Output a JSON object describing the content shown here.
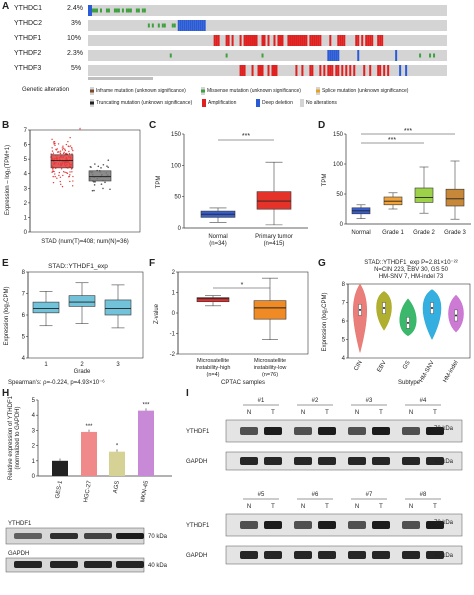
{
  "panels": [
    "A",
    "B",
    "C",
    "D",
    "E",
    "F",
    "G",
    "H",
    "I"
  ],
  "oncoprint": {
    "genes": [
      "YTHDC1",
      "YTHDC2",
      "YTHDF1",
      "YTHDF2",
      "YTHDF3"
    ],
    "pcts": [
      "2.4%",
      "3%",
      "10%",
      "2.3%",
      "5%"
    ],
    "legend_title": "Genetic alteration",
    "legend": [
      "Inframe mutation (unknown significance)",
      "Missense mutation (unknown significance)",
      "Splice mutation (unknown significance)",
      "Truncating mutation (unknown significance)",
      "Amplification",
      "Deep deletion",
      "No alterations"
    ]
  },
  "chart_data": [
    {
      "panel": "B",
      "type": "box",
      "ylabel": "Expression – log₂(TPM+1)",
      "yticks": [
        "0",
        "1",
        "2",
        "3",
        "4",
        "5",
        "6",
        "7"
      ],
      "ylim": [
        0,
        7
      ],
      "categories": [
        "T",
        "N"
      ],
      "medians": [
        4.9,
        3.8
      ],
      "q1": [
        4.4,
        3.5
      ],
      "q3": [
        5.3,
        4.2
      ],
      "colors": [
        "#e23b3b",
        "#777777"
      ],
      "xlabel": "STAD (num(T)=408; num(N)=36)"
    },
    {
      "panel": "C",
      "type": "box",
      "ylabel": "TPM",
      "yticks": [
        "0",
        "50",
        "100",
        "150"
      ],
      "ylim": [
        0,
        150
      ],
      "categories": [
        "Normal\n(n=34)",
        "Primary tumor\n(n=415)"
      ],
      "medians": [
        22,
        43
      ],
      "q1": [
        17,
        30
      ],
      "q3": [
        27,
        58
      ],
      "whislo": [
        9,
        5
      ],
      "whishi": [
        32,
        105
      ],
      "colors": [
        "#3a5fcd",
        "#e5332a"
      ],
      "sig": "***"
    },
    {
      "panel": "D",
      "type": "box",
      "ylabel": "TPM",
      "yticks": [
        "0",
        "50",
        "100",
        "150"
      ],
      "ylim": [
        0,
        150
      ],
      "categories": [
        "Normal",
        "Grade 1",
        "Grade 2",
        "Grade 3"
      ],
      "medians": [
        22,
        38,
        44,
        42
      ],
      "q1": [
        17,
        32,
        36,
        30
      ],
      "q3": [
        27,
        45,
        60,
        58
      ],
      "whislo": [
        9,
        25,
        18,
        8
      ],
      "whishi": [
        32,
        52,
        95,
        105
      ],
      "colors": [
        "#3a5fcd",
        "#f2a33a",
        "#9dd14a",
        "#c8883a"
      ],
      "sig": [
        "***",
        "***"
      ]
    },
    {
      "panel": "E",
      "type": "box",
      "title": "STAD::YTHDF1_exp",
      "ylabel": "Expression (log₂CPM)",
      "yticks": [
        "4",
        "5",
        "6",
        "7",
        "8"
      ],
      "ylim": [
        4,
        8
      ],
      "categories": [
        "1",
        "2",
        "3"
      ],
      "medians": [
        6.3,
        6.6,
        6.3
      ],
      "q1": [
        6.1,
        6.4,
        6.0
      ],
      "q3": [
        6.6,
        6.9,
        6.7
      ],
      "whislo": [
        5.5,
        5.6,
        5.4
      ],
      "whishi": [
        7.1,
        7.5,
        7.4
      ],
      "colors": [
        "#72c2d9",
        "#72c2d9",
        "#72c2d9"
      ],
      "xlabel": "Grade",
      "footnote": "Spearman's: ρ=-0.224, p=4.93×10⁻⁶"
    },
    {
      "panel": "F",
      "type": "box",
      "ylabel": "Z-value",
      "yticks": [
        "-2",
        "-1",
        "0",
        "1",
        "2"
      ],
      "ylim": [
        -2,
        2
      ],
      "categories": [
        "Microsatellite\ninstability-high\n(n=4)",
        "Microsatellite\ninstability-low\n(n=76)"
      ],
      "medians": [
        0.7,
        0.25
      ],
      "q1": [
        0.55,
        -0.3
      ],
      "q3": [
        0.75,
        0.6
      ],
      "whislo": [
        0.35,
        -1.3
      ],
      "whishi": [
        0.85,
        1.7
      ],
      "colors": [
        "#e03030",
        "#f08a24"
      ],
      "xlabel": "CPTAC samples",
      "sig": "*"
    },
    {
      "panel": "G",
      "type": "violin",
      "title": "STAD::YTHDF1_exp P=2.81×10⁻²²",
      "subtitle1": "N=CIN 223, EBV 30, GS 50",
      "subtitle2": "HM-SNV 7, HM-indel 73",
      "ylabel": "Expression (log₂CPM)",
      "yticks": [
        "4",
        "5",
        "6",
        "7",
        "8"
      ],
      "ylim": [
        4,
        8
      ],
      "categories": [
        "CIN",
        "EBV",
        "GS",
        "HM-SNV",
        "HM-indel"
      ],
      "medians": [
        6.6,
        6.7,
        5.9,
        6.7,
        6.3
      ],
      "colors": [
        "#e8706b",
        "#a9a61a",
        "#26b05c",
        "#1fa6dc",
        "#c66bcf"
      ],
      "xlabel": "Subtype"
    },
    {
      "panel": "H",
      "type": "bar",
      "ylabel": "Relative expression of YTHDF1\n(normalized to GAPDH)",
      "yticks": [
        "0",
        "1",
        "2",
        "3",
        "4",
        "5"
      ],
      "ylim": [
        0,
        5
      ],
      "categories": [
        "GES-1",
        "HGC-27",
        "AGS",
        "MKN-45"
      ],
      "values": [
        1.0,
        2.9,
        1.6,
        4.3
      ],
      "colors": [
        "#222222",
        "#f08a8a",
        "#d6d296",
        "#c88ad6"
      ],
      "sig": [
        "",
        "***",
        "*",
        "***"
      ]
    }
  ],
  "blot_h": {
    "rows": [
      "YTHDF1",
      "GAPDH"
    ],
    "sizes": [
      "70 kDa",
      "40 kDa"
    ]
  },
  "blot_i": {
    "pairs1": [
      "#1",
      "#2",
      "#3",
      "#4"
    ],
    "pairs2": [
      "#5",
      "#6",
      "#7",
      "#8"
    ],
    "n": "N",
    "t": "T",
    "rows": [
      "YTHDF1",
      "GAPDH"
    ],
    "sizes": [
      "70 kDa",
      "40 kDa"
    ]
  }
}
